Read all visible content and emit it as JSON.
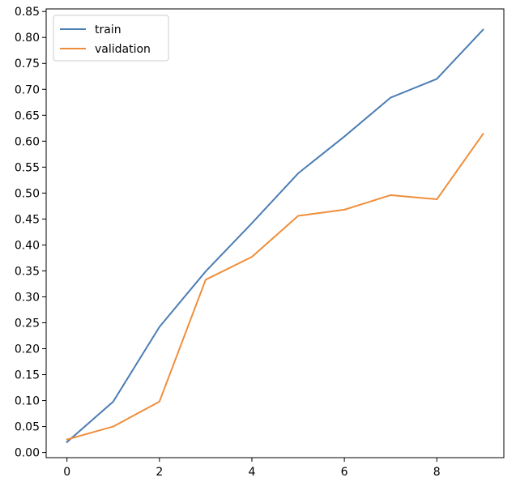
{
  "chart_data": {
    "type": "line",
    "title": "",
    "xlabel": "",
    "ylabel": "",
    "x": [
      0,
      1,
      2,
      3,
      4,
      5,
      6,
      7,
      8,
      9
    ],
    "xlim": [
      -0.45,
      9.45
    ],
    "ylim": [
      -0.01,
      0.855
    ],
    "xticks": [
      0,
      2,
      4,
      6,
      8
    ],
    "yticks": [
      0.0,
      0.05,
      0.1,
      0.15,
      0.2,
      0.25,
      0.3,
      0.35,
      0.4,
      0.45,
      0.5,
      0.55,
      0.6,
      0.65,
      0.7,
      0.75,
      0.8,
      0.85
    ],
    "xtick_labels": [
      "0",
      "2",
      "4",
      "6",
      "8"
    ],
    "ytick_labels": [
      "0.00",
      "0.05",
      "0.10",
      "0.15",
      "0.20",
      "0.25",
      "0.30",
      "0.35",
      "0.40",
      "0.45",
      "0.50",
      "0.55",
      "0.60",
      "0.65",
      "0.70",
      "0.75",
      "0.80",
      "0.85"
    ],
    "grid": false,
    "legend_position": "top-left",
    "series": [
      {
        "name": "train",
        "color": "#4c7db4",
        "values": [
          0.02,
          0.098,
          0.242,
          0.349,
          0.442,
          0.538,
          0.609,
          0.684,
          0.72,
          0.815
        ]
      },
      {
        "name": "validation",
        "color": "#ef8e3a",
        "values": [
          0.025,
          0.05,
          0.098,
          0.333,
          0.377,
          0.456,
          0.468,
          0.496,
          0.488,
          0.614
        ]
      }
    ]
  }
}
